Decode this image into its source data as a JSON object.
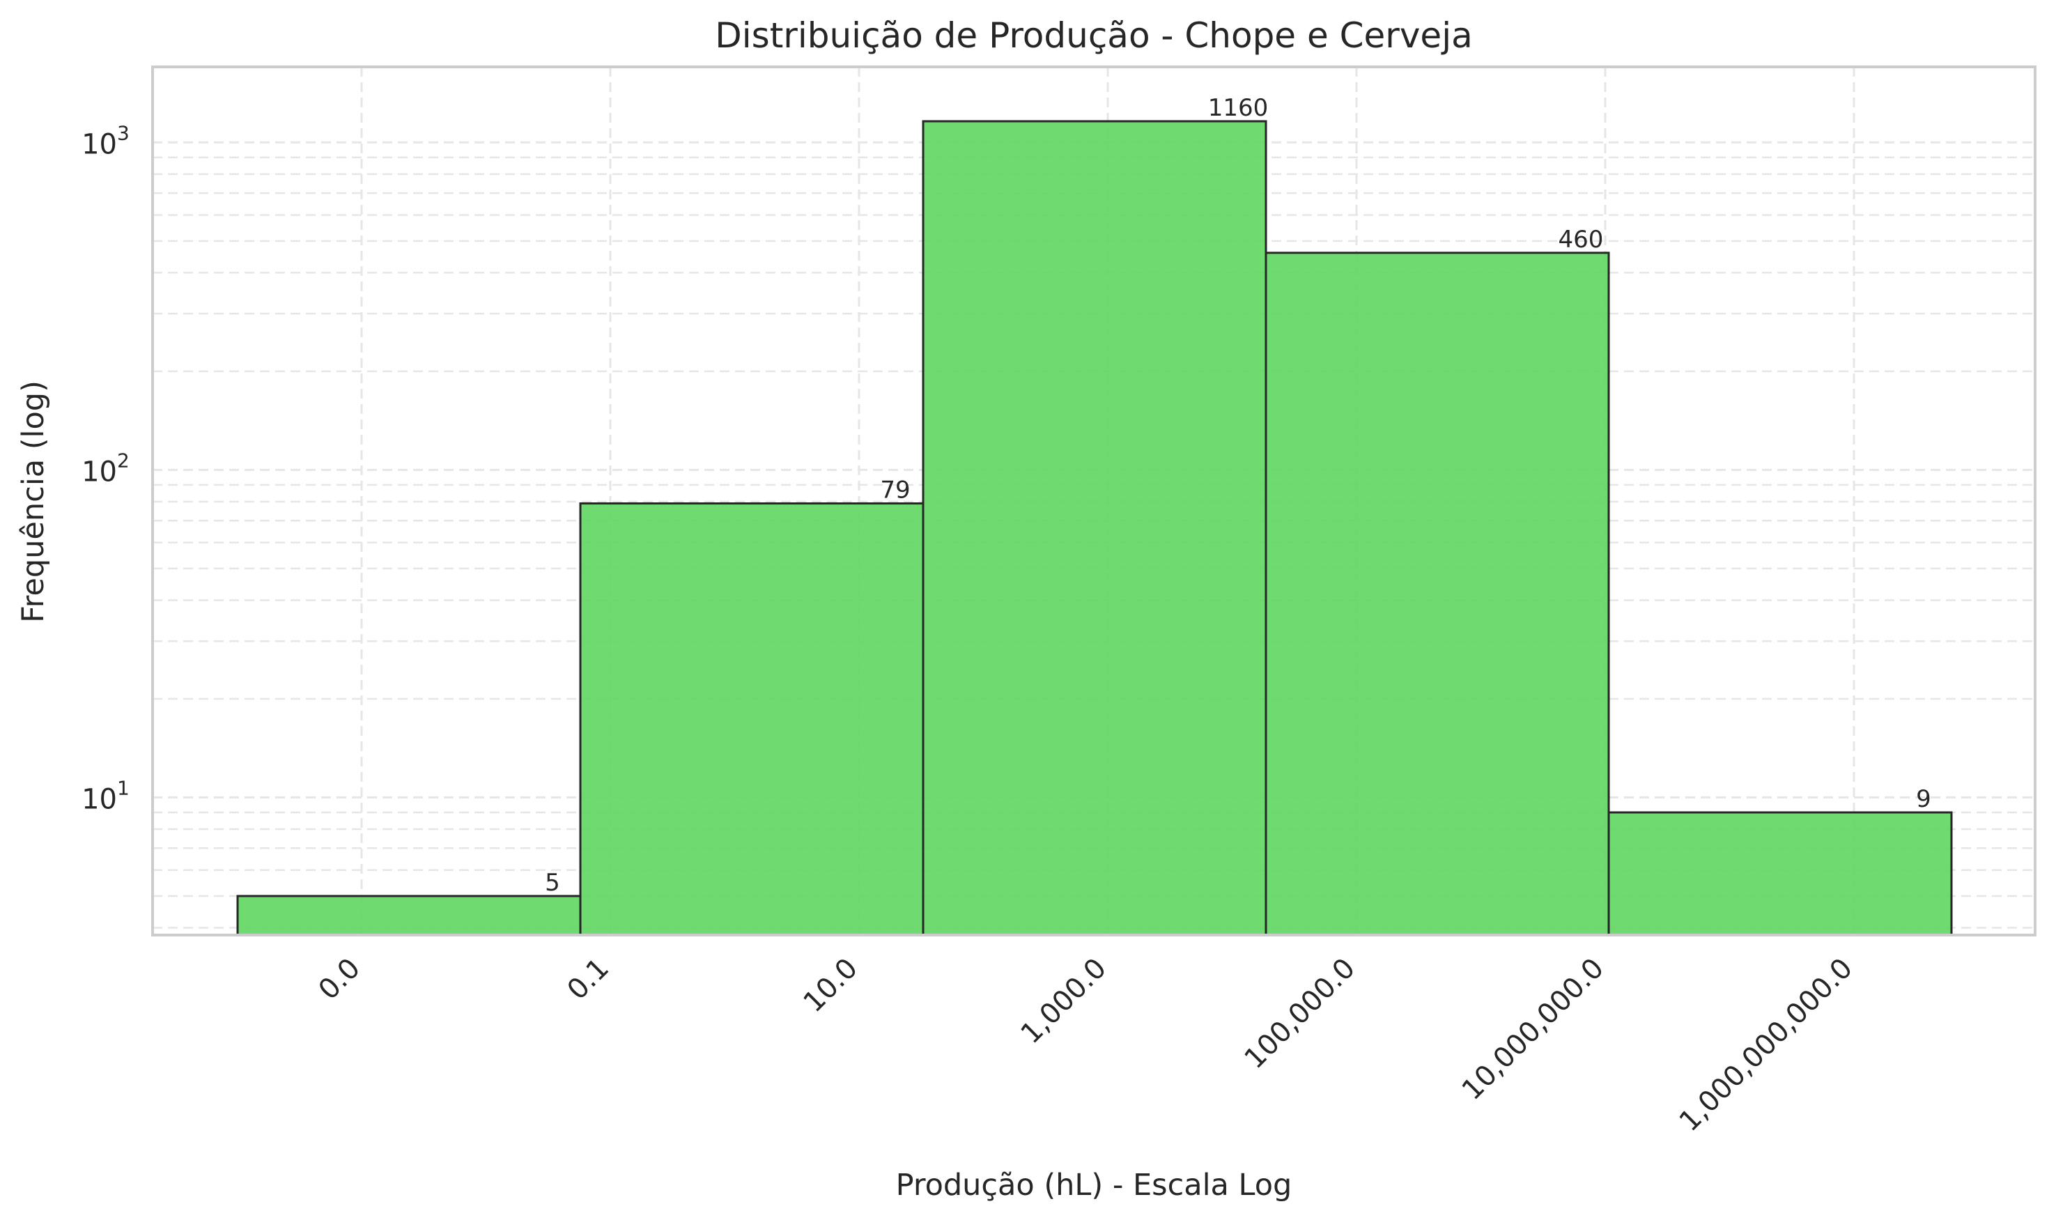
{
  "chart_data": {
    "type": "bar",
    "title": "Distribuição de Produção - Chope e Cerveja",
    "xlabel": "Produção (hL) - Escala Log",
    "ylabel": "Frequência (log)",
    "y_scale": "log",
    "ylim": [
      3.8,
      1700
    ],
    "y_ticks": [
      {
        "value": 10,
        "base": "10",
        "exp": "1"
      },
      {
        "value": 100,
        "base": "10",
        "exp": "2"
      },
      {
        "value": 1000,
        "base": "10",
        "exp": "3"
      }
    ],
    "x_tick_labels": [
      "0.0",
      "0.1",
      "10.0",
      "1,000.0",
      "100,000.0",
      "10,000,000.0",
      "1,000,000,000.0"
    ],
    "bins": [
      {
        "from": "0.0",
        "to": "0.1",
        "value": 5,
        "label": "5"
      },
      {
        "from": "0.1",
        "to": "10.0",
        "value": 79,
        "label": "79"
      },
      {
        "from": "10.0",
        "to": "1,000.0",
        "value": 1160,
        "label": "1160"
      },
      {
        "from": "1,000.0",
        "to": "100,000.0",
        "value": 460,
        "label": "460"
      },
      {
        "from": "100,000.0",
        "to": "10,000,000.0",
        "value": 9,
        "label": "9"
      }
    ],
    "grid": true,
    "legend": "none",
    "colors": {
      "bar_fill": "#5fd65f",
      "bar_edge": "#262626",
      "grid": "#e6e6e6",
      "frame": "#cccccc"
    }
  }
}
